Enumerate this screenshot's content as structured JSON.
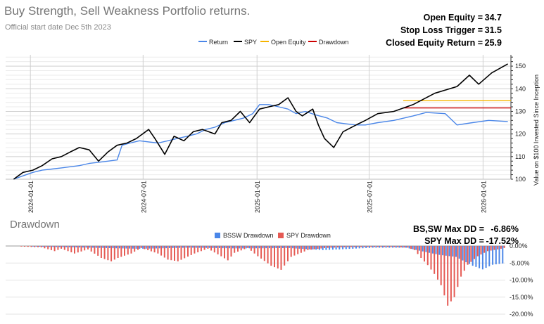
{
  "header": {
    "title": "Buy Strength, Sell Weakness Portfolio returns.",
    "subtitle": "Official start date Dec 5th 2023"
  },
  "stats": {
    "open_equity_label": "Open Equity =",
    "open_equity_value": "34.7",
    "stop_loss_label": "Stop Loss Trigger =",
    "stop_loss_value": "31.5",
    "closed_equity_label": "Closed Equity Return =",
    "closed_equity_value": "25.9"
  },
  "drawdown_stats": {
    "bssw_label": "BS,SW Max DD =",
    "bssw_value": "-6.86%",
    "spy_label": "SPY Max DD =",
    "spy_value": "-17.52%"
  },
  "colors": {
    "return": "#4a86e8",
    "spy": "#000000",
    "open_equity": "#f6b400",
    "drawdown_line": "#cc0000",
    "bssw_dd": "#4a86e8",
    "spy_dd": "#e55a54"
  },
  "chart_data": [
    {
      "type": "line",
      "title": "Buy Strength, Sell Weakness Portfolio returns.",
      "ylabel": "Value on $100 Invested Since Inception",
      "ylim": [
        100,
        155
      ],
      "yticks": [
        "100",
        "110",
        "120",
        "130",
        "140",
        "150"
      ],
      "xlim": [
        "2023-11-22",
        "2026-02-15"
      ],
      "xticks": [
        "2024-01-01",
        "2024-07-01",
        "2025-01-01",
        "2025-07-01",
        "2026-01-01"
      ],
      "legend": [
        "Return",
        "SPY",
        "Open Equity",
        "Drawdown"
      ],
      "series": [
        {
          "name": "Return",
          "points": [
            [
              "2023-12-05",
              100
            ],
            [
              "2023-12-20",
              101.5
            ],
            [
              "2024-01-05",
              103
            ],
            [
              "2024-01-20",
              104
            ],
            [
              "2024-02-05",
              104.5
            ],
            [
              "2024-02-20",
              105
            ],
            [
              "2024-03-05",
              105.5
            ],
            [
              "2024-03-20",
              106
            ],
            [
              "2024-04-05",
              107
            ],
            [
              "2024-04-20",
              107.5
            ],
            [
              "2024-05-05",
              108
            ],
            [
              "2024-05-20",
              108.5
            ],
            [
              "2024-05-28",
              115
            ],
            [
              "2024-06-10",
              116
            ],
            [
              "2024-06-25",
              117
            ],
            [
              "2024-07-10",
              116.5
            ],
            [
              "2024-07-25",
              116
            ],
            [
              "2024-08-10",
              117
            ],
            [
              "2024-08-25",
              118
            ],
            [
              "2024-09-10",
              119
            ],
            [
              "2024-09-25",
              120
            ],
            [
              "2024-10-10",
              122
            ],
            [
              "2024-10-25",
              123
            ],
            [
              "2024-11-10",
              125
            ],
            [
              "2024-11-25",
              126
            ],
            [
              "2024-12-10",
              127
            ],
            [
              "2024-12-25",
              129
            ],
            [
              "2025-01-05",
              133
            ],
            [
              "2025-01-20",
              133
            ],
            [
              "2025-02-05",
              132
            ],
            [
              "2025-02-20",
              131
            ],
            [
              "2025-03-05",
              129
            ],
            [
              "2025-03-20",
              130
            ],
            [
              "2025-04-05",
              128.5
            ],
            [
              "2025-04-25",
              127
            ],
            [
              "2025-05-10",
              125
            ],
            [
              "2025-05-25",
              124.5
            ],
            [
              "2025-06-10",
              124
            ],
            [
              "2025-06-25",
              124
            ],
            [
              "2025-07-15",
              125
            ],
            [
              "2025-08-10",
              126
            ],
            [
              "2025-09-10",
              128
            ],
            [
              "2025-10-01",
              129.5
            ],
            [
              "2025-11-01",
              129
            ],
            [
              "2025-11-20",
              124
            ],
            [
              "2025-12-15",
              125
            ],
            [
              "2026-01-10",
              126
            ],
            [
              "2026-02-10",
              125.5
            ]
          ]
        },
        {
          "name": "SPY",
          "points": [
            [
              "2023-12-05",
              100
            ],
            [
              "2023-12-20",
              103
            ],
            [
              "2024-01-05",
              104
            ],
            [
              "2024-01-20",
              106
            ],
            [
              "2024-02-05",
              109
            ],
            [
              "2024-02-20",
              110
            ],
            [
              "2024-03-05",
              112
            ],
            [
              "2024-03-20",
              114
            ],
            [
              "2024-04-05",
              113
            ],
            [
              "2024-04-20",
              108
            ],
            [
              "2024-05-05",
              112
            ],
            [
              "2024-05-20",
              115
            ],
            [
              "2024-06-05",
              116
            ],
            [
              "2024-06-20",
              118
            ],
            [
              "2024-07-10",
              122
            ],
            [
              "2024-07-20",
              118
            ],
            [
              "2024-08-05",
              111
            ],
            [
              "2024-08-20",
              119
            ],
            [
              "2024-09-05",
              117
            ],
            [
              "2024-09-20",
              121
            ],
            [
              "2024-10-05",
              122
            ],
            [
              "2024-10-25",
              120
            ],
            [
              "2024-11-05",
              125
            ],
            [
              "2024-11-20",
              126
            ],
            [
              "2024-12-05",
              130
            ],
            [
              "2024-12-20",
              125
            ],
            [
              "2025-01-05",
              131
            ],
            [
              "2025-01-20",
              132
            ],
            [
              "2025-02-05",
              133
            ],
            [
              "2025-02-20",
              136
            ],
            [
              "2025-03-05",
              130
            ],
            [
              "2025-03-15",
              128
            ],
            [
              "2025-04-01",
              131
            ],
            [
              "2025-04-10",
              124
            ],
            [
              "2025-04-20",
              118
            ],
            [
              "2025-05-05",
              114
            ],
            [
              "2025-05-20",
              121
            ],
            [
              "2025-06-10",
              124
            ],
            [
              "2025-06-25",
              126
            ],
            [
              "2025-07-15",
              129
            ],
            [
              "2025-08-10",
              130
            ],
            [
              "2025-09-10",
              133
            ],
            [
              "2025-10-15",
              138
            ],
            [
              "2025-11-20",
              141
            ],
            [
              "2025-12-10",
              146
            ],
            [
              "2025-12-25",
              142
            ],
            [
              "2026-01-15",
              147
            ],
            [
              "2026-02-10",
              151
            ]
          ]
        },
        {
          "name": "Open Equity",
          "points": [
            [
              "2025-08-25",
              134.7
            ],
            [
              "2026-02-15",
              134.7
            ]
          ]
        },
        {
          "name": "Drawdown",
          "points": [
            [
              "2025-08-25",
              131.5
            ],
            [
              "2026-02-15",
              131.5
            ]
          ]
        }
      ]
    },
    {
      "type": "bar",
      "title": "Drawdown",
      "ylim": [
        -20,
        0
      ],
      "yticks": [
        "0.00%",
        "-5.00%",
        "-10.00%",
        "-15.00%",
        "-20.00%"
      ],
      "legend": [
        "BSSW Drawdown",
        "SPY Drawdown"
      ],
      "bar_count": 150,
      "series": [
        {
          "name": "BSSW Drawdown",
          "segments": [
            [
              30,
              0.6
            ],
            [
              40,
              0.8
            ],
            [
              55,
              0.5
            ],
            [
              70,
              0.7
            ],
            [
              85,
              0.6
            ],
            [
              95,
              1.2
            ],
            [
              100,
              1.0
            ],
            [
              110,
              0.5
            ],
            [
              120,
              0.5
            ],
            [
              126,
              1.8
            ],
            [
              130,
              2.6
            ],
            [
              135,
              3.2
            ],
            [
              140,
              5.8
            ],
            [
              143,
              6.86
            ],
            [
              146,
              5.5
            ],
            [
              150,
              5.0
            ]
          ]
        },
        {
          "name": "SPY Drawdown",
          "segments": [
            [
              10,
              0.4
            ],
            [
              14,
              1.5
            ],
            [
              16,
              0.8
            ],
            [
              20,
              2.2
            ],
            [
              24,
              1.0
            ],
            [
              28,
              3.5
            ],
            [
              31,
              4.5
            ],
            [
              33,
              3.5
            ],
            [
              37,
              2.2
            ],
            [
              40,
              0.6
            ],
            [
              45,
              2.2
            ],
            [
              48,
              4.0
            ],
            [
              51,
              4.5
            ],
            [
              56,
              2.2
            ],
            [
              60,
              0.8
            ],
            [
              64,
              3.0
            ],
            [
              66,
              4.2
            ],
            [
              68,
              2.0
            ],
            [
              72,
              0.6
            ],
            [
              75,
              3.0
            ],
            [
              79,
              5.8
            ],
            [
              82,
              7.0
            ],
            [
              85,
              3.2
            ],
            [
              90,
              1.2
            ],
            [
              95,
              0.6
            ],
            [
              100,
              0.4
            ],
            [
              105,
              0.3
            ],
            [
              110,
              0.3
            ],
            [
              115,
              0.3
            ],
            [
              120,
              0.5
            ],
            [
              122,
              1.2
            ],
            [
              124,
              3.5
            ],
            [
              126,
              5.6
            ],
            [
              128,
              8.2
            ],
            [
              130,
              11.5
            ],
            [
              132,
              17.5
            ],
            [
              134,
              15.0
            ],
            [
              136,
              9.0
            ],
            [
              138,
              5.5
            ],
            [
              141,
              3.0
            ],
            [
              144,
              1.5
            ],
            [
              147,
              1.0
            ],
            [
              150,
              0.4
            ]
          ]
        }
      ]
    }
  ]
}
